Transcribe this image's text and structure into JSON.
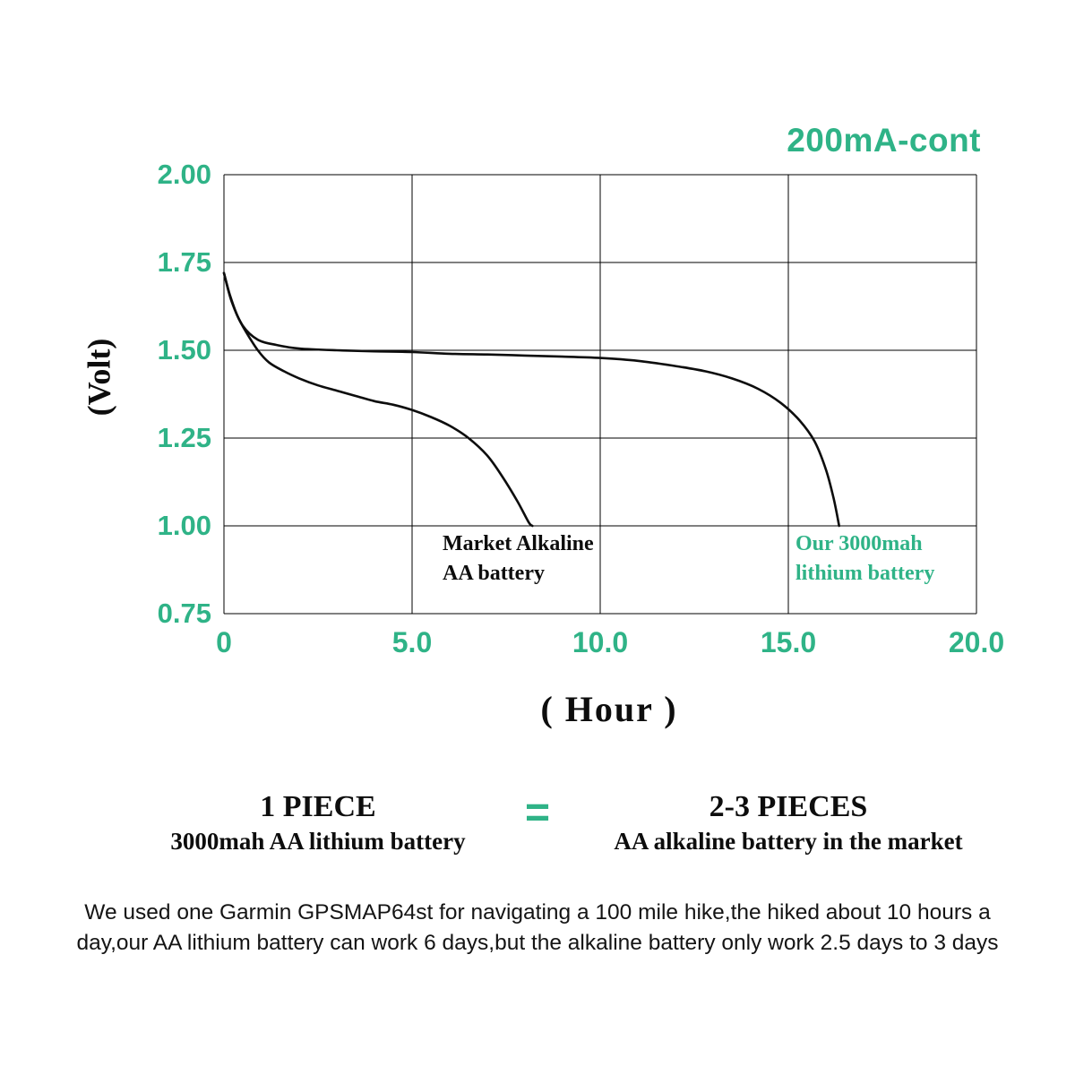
{
  "chart_data": {
    "type": "line",
    "title": "200mA-cont",
    "xlabel": "( Hour )",
    "ylabel": "(Volt)",
    "xlim": [
      0,
      20
    ],
    "ylim": [
      0.75,
      2.0
    ],
    "grid": true,
    "x_ticks": [
      "0",
      "5.0",
      "10.0",
      "15.0",
      "20.0"
    ],
    "x_tick_values": [
      0,
      5,
      10,
      15,
      20
    ],
    "y_ticks": [
      "2.00",
      "1.75",
      "1.50",
      "1.25",
      "1.00",
      "0.75"
    ],
    "y_tick_values": [
      2.0,
      1.75,
      1.5,
      1.25,
      1.0,
      0.75
    ],
    "series": [
      {
        "id": "alkaline-curve",
        "name": "Market Alkaline AA battery",
        "color": "#0d0d0d",
        "points": [
          [
            0,
            1.72
          ],
          [
            0.15,
            1.66
          ],
          [
            0.35,
            1.6
          ],
          [
            0.6,
            1.55
          ],
          [
            0.9,
            1.5
          ],
          [
            1.2,
            1.465
          ],
          [
            1.6,
            1.44
          ],
          [
            2.0,
            1.42
          ],
          [
            2.5,
            1.4
          ],
          [
            3.0,
            1.385
          ],
          [
            3.5,
            1.37
          ],
          [
            4.0,
            1.355
          ],
          [
            4.5,
            1.345
          ],
          [
            5.0,
            1.33
          ],
          [
            5.5,
            1.31
          ],
          [
            6.0,
            1.285
          ],
          [
            6.5,
            1.25
          ],
          [
            7.0,
            1.2
          ],
          [
            7.4,
            1.14
          ],
          [
            7.8,
            1.07
          ],
          [
            8.1,
            1.01
          ],
          [
            8.2,
            1.0
          ]
        ]
      },
      {
        "id": "lithium-curve",
        "name": "Our 3000mah lithium battery",
        "color": "#0d0d0d",
        "points": [
          [
            0,
            1.72
          ],
          [
            0.2,
            1.64
          ],
          [
            0.5,
            1.57
          ],
          [
            0.9,
            1.53
          ],
          [
            1.4,
            1.515
          ],
          [
            2.0,
            1.505
          ],
          [
            3.0,
            1.5
          ],
          [
            4.0,
            1.497
          ],
          [
            5.0,
            1.495
          ],
          [
            6.0,
            1.49
          ],
          [
            7.0,
            1.488
          ],
          [
            8.0,
            1.485
          ],
          [
            9.0,
            1.482
          ],
          [
            10.0,
            1.478
          ],
          [
            11.0,
            1.47
          ],
          [
            12.0,
            1.455
          ],
          [
            12.8,
            1.44
          ],
          [
            13.5,
            1.42
          ],
          [
            14.2,
            1.39
          ],
          [
            14.8,
            1.35
          ],
          [
            15.3,
            1.3
          ],
          [
            15.7,
            1.24
          ],
          [
            16.0,
            1.16
          ],
          [
            16.2,
            1.08
          ],
          [
            16.35,
            1.0
          ]
        ]
      }
    ],
    "annotations": [
      {
        "id": "alkaline-label",
        "color": "#0d0d0d",
        "lines": [
          "Market Alkaline",
          "AA battery"
        ]
      },
      {
        "id": "lithium-label",
        "color": "#2fb387",
        "lines": [
          "Our 3000mah",
          "lithium battery"
        ]
      }
    ]
  },
  "equation": {
    "left_title": "1 PIECE",
    "left_subtitle": "3000mah AA lithium battery",
    "equals": "=",
    "right_title": "2-3 PIECES",
    "right_subtitle": "AA alkaline battery in the market"
  },
  "footnote": "We used one Garmin GPSMAP64st for navigating a 100 mile hike,the hiked about 10 hours a day,our AA lithium battery can work 6 days,but the alkaline battery only work 2.5 days to 3 days",
  "colors": {
    "accent_green": "#2fb387",
    "curve": "#0d0d0d"
  }
}
